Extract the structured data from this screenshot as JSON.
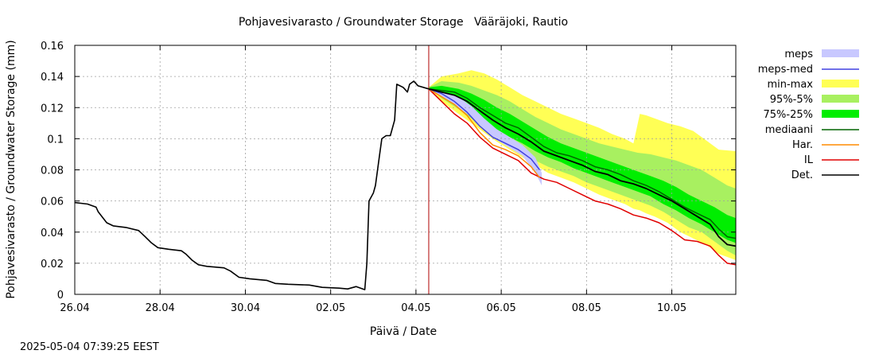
{
  "chart_data": {
    "type": "line",
    "title": "Pohjavesivarasto / Groundwater Storage   Vääräjoki, Rautio",
    "xlabel": "Päivä / Date",
    "ylabel": "Pohjavesivarasto / Groundwater Storage (mm)",
    "ylim": [
      0,
      0.16
    ],
    "y_ticks": [
      "0",
      "0.02",
      "0.04",
      "0.06",
      "0.08",
      "0.1",
      "0.12",
      "0.14",
      "0.16"
    ],
    "x_range_days": [
      0,
      15.5
    ],
    "x_ticks": [
      {
        "day": 0,
        "label": "26.04"
      },
      {
        "day": 2,
        "label": "28.04"
      },
      {
        "day": 4,
        "label": "30.04"
      },
      {
        "day": 6,
        "label": "02.05"
      },
      {
        "day": 8,
        "label": "04.05"
      },
      {
        "day": 10,
        "label": "06.05"
      },
      {
        "day": 12,
        "label": "08.05"
      },
      {
        "day": 14,
        "label": "10.05"
      }
    ],
    "grid": true,
    "legend_position": "right",
    "forecast_start_day": 8.3,
    "colors": {
      "meps": "#c8c8ff",
      "meps_med": "#4040e0",
      "minmax": "#ffff55",
      "p95_5": "#a8f060",
      "p75_25": "#00ee00",
      "median": "#006400",
      "har": "#ff8c00",
      "il": "#e00000",
      "det": "#000000",
      "forecast_line": "#b00000"
    },
    "legend": [
      {
        "key": "meps",
        "label": "meps",
        "kind": "band"
      },
      {
        "key": "meps_med",
        "label": "meps-med",
        "kind": "line"
      },
      {
        "key": "minmax",
        "label": "min-max",
        "kind": "band"
      },
      {
        "key": "p95_5",
        "label": "95%-5%",
        "kind": "band"
      },
      {
        "key": "p75_25",
        "label": "75%-25%",
        "kind": "band"
      },
      {
        "key": "median",
        "label": "mediaani",
        "kind": "line"
      },
      {
        "key": "har",
        "label": "Har.",
        "kind": "line"
      },
      {
        "key": "il",
        "label": "IL",
        "kind": "line"
      },
      {
        "key": "det",
        "label": "Det.",
        "kind": "line"
      }
    ],
    "series": {
      "observed": [
        [
          0,
          0.059
        ],
        [
          0.3,
          0.058
        ],
        [
          0.5,
          0.056
        ],
        [
          0.55,
          0.053
        ],
        [
          0.75,
          0.046
        ],
        [
          0.9,
          0.044
        ],
        [
          1.2,
          0.043
        ],
        [
          1.5,
          0.041
        ],
        [
          1.65,
          0.037
        ],
        [
          1.8,
          0.033
        ],
        [
          1.95,
          0.03
        ],
        [
          2.2,
          0.029
        ],
        [
          2.5,
          0.028
        ],
        [
          2.6,
          0.026
        ],
        [
          2.75,
          0.022
        ],
        [
          2.9,
          0.019
        ],
        [
          3.1,
          0.018
        ],
        [
          3.5,
          0.017
        ],
        [
          3.65,
          0.015
        ],
        [
          3.85,
          0.011
        ],
        [
          4.1,
          0.01
        ],
        [
          4.5,
          0.009
        ],
        [
          4.7,
          0.007
        ],
        [
          5.0,
          0.0065
        ],
        [
          5.5,
          0.006
        ],
        [
          5.8,
          0.0045
        ],
        [
          6.2,
          0.004
        ],
        [
          6.4,
          0.0035
        ],
        [
          6.6,
          0.005
        ],
        [
          6.8,
          0.003
        ],
        [
          6.85,
          0.02
        ],
        [
          6.9,
          0.06
        ],
        [
          7.0,
          0.065
        ],
        [
          7.05,
          0.07
        ],
        [
          7.15,
          0.09
        ],
        [
          7.2,
          0.1
        ],
        [
          7.3,
          0.102
        ],
        [
          7.4,
          0.102
        ],
        [
          7.5,
          0.112
        ],
        [
          7.55,
          0.135
        ],
        [
          7.7,
          0.133
        ],
        [
          7.8,
          0.13
        ],
        [
          7.85,
          0.135
        ],
        [
          7.95,
          0.137
        ],
        [
          8.05,
          0.134
        ],
        [
          8.3,
          0.132
        ]
      ],
      "det": [
        [
          8.3,
          0.132
        ],
        [
          8.6,
          0.13
        ],
        [
          8.9,
          0.128
        ],
        [
          9.2,
          0.124
        ],
        [
          9.5,
          0.118
        ],
        [
          9.8,
          0.112
        ],
        [
          10.1,
          0.107
        ],
        [
          10.4,
          0.103
        ],
        [
          10.7,
          0.098
        ],
        [
          11.0,
          0.092
        ],
        [
          11.3,
          0.089
        ],
        [
          11.6,
          0.086
        ],
        [
          11.9,
          0.083
        ],
        [
          12.2,
          0.079
        ],
        [
          12.5,
          0.077
        ],
        [
          12.8,
          0.073
        ],
        [
          13.1,
          0.071
        ],
        [
          13.4,
          0.068
        ],
        [
          13.7,
          0.064
        ],
        [
          14.0,
          0.06
        ],
        [
          14.3,
          0.055
        ],
        [
          14.6,
          0.05
        ],
        [
          14.9,
          0.045
        ],
        [
          15.1,
          0.037
        ],
        [
          15.3,
          0.032
        ],
        [
          15.5,
          0.031
        ]
      ],
      "median": [
        [
          8.3,
          0.132
        ],
        [
          8.6,
          0.131
        ],
        [
          8.9,
          0.13
        ],
        [
          9.2,
          0.126
        ],
        [
          9.5,
          0.12
        ],
        [
          9.8,
          0.115
        ],
        [
          10.1,
          0.11
        ],
        [
          10.4,
          0.107
        ],
        [
          10.7,
          0.101
        ],
        [
          11.0,
          0.095
        ],
        [
          11.3,
          0.091
        ],
        [
          11.6,
          0.089
        ],
        [
          11.9,
          0.086
        ],
        [
          12.2,
          0.082
        ],
        [
          12.5,
          0.08
        ],
        [
          12.8,
          0.077
        ],
        [
          13.1,
          0.073
        ],
        [
          13.4,
          0.07
        ],
        [
          13.7,
          0.066
        ],
        [
          14.0,
          0.061
        ],
        [
          14.3,
          0.056
        ],
        [
          14.6,
          0.052
        ],
        [
          14.9,
          0.048
        ],
        [
          15.1,
          0.042
        ],
        [
          15.3,
          0.037
        ],
        [
          15.5,
          0.036
        ]
      ],
      "meps_med": [
        [
          8.3,
          0.132
        ],
        [
          8.6,
          0.129
        ],
        [
          8.9,
          0.124
        ],
        [
          9.2,
          0.117
        ],
        [
          9.5,
          0.108
        ],
        [
          9.8,
          0.101
        ],
        [
          10.1,
          0.097
        ],
        [
          10.4,
          0.093
        ],
        [
          10.7,
          0.087
        ],
        [
          10.9,
          0.08
        ]
      ],
      "har": [
        [
          8.3,
          0.132
        ],
        [
          8.6,
          0.127
        ],
        [
          8.9,
          0.122
        ],
        [
          9.2,
          0.115
        ],
        [
          9.5,
          0.104
        ],
        [
          9.8,
          0.096
        ],
        [
          10.1,
          0.093
        ],
        [
          10.4,
          0.089
        ],
        [
          10.7,
          0.082
        ],
        [
          10.9,
          0.075
        ]
      ],
      "il": [
        [
          8.3,
          0.132
        ],
        [
          8.6,
          0.124
        ],
        [
          8.9,
          0.116
        ],
        [
          9.2,
          0.11
        ],
        [
          9.5,
          0.101
        ],
        [
          9.8,
          0.094
        ],
        [
          10.1,
          0.09
        ],
        [
          10.4,
          0.086
        ],
        [
          10.7,
          0.078
        ],
        [
          11.0,
          0.074
        ],
        [
          11.3,
          0.072
        ],
        [
          11.6,
          0.068
        ],
        [
          11.9,
          0.064
        ],
        [
          12.2,
          0.06
        ],
        [
          12.5,
          0.058
        ],
        [
          12.8,
          0.055
        ],
        [
          13.1,
          0.051
        ],
        [
          13.4,
          0.049
        ],
        [
          13.7,
          0.046
        ],
        [
          14.0,
          0.041
        ],
        [
          14.3,
          0.035
        ],
        [
          14.6,
          0.034
        ],
        [
          14.9,
          0.031
        ],
        [
          15.1,
          0.025
        ],
        [
          15.3,
          0.02
        ],
        [
          15.5,
          0.019
        ]
      ]
    },
    "bands": {
      "minmax": [
        [
          8.3,
          0.133,
          0.133
        ],
        [
          8.6,
          0.124,
          0.14
        ],
        [
          9.0,
          0.116,
          0.142
        ],
        [
          9.3,
          0.11,
          0.144
        ],
        [
          9.6,
          0.104,
          0.142
        ],
        [
          9.9,
          0.098,
          0.138
        ],
        [
          10.2,
          0.093,
          0.133
        ],
        [
          10.5,
          0.088,
          0.128
        ],
        [
          10.8,
          0.083,
          0.124
        ],
        [
          11.1,
          0.078,
          0.12
        ],
        [
          11.4,
          0.075,
          0.116
        ],
        [
          11.7,
          0.072,
          0.113
        ],
        [
          12.0,
          0.068,
          0.11
        ],
        [
          12.3,
          0.064,
          0.107
        ],
        [
          12.6,
          0.061,
          0.103
        ],
        [
          12.9,
          0.058,
          0.1
        ],
        [
          13.1,
          0.055,
          0.097
        ],
        [
          13.25,
          0.054,
          0.116
        ],
        [
          13.4,
          0.052,
          0.115
        ],
        [
          13.6,
          0.05,
          0.113
        ],
        [
          13.9,
          0.046,
          0.11
        ],
        [
          14.2,
          0.04,
          0.108
        ],
        [
          14.5,
          0.036,
          0.105
        ],
        [
          14.8,
          0.032,
          0.099
        ],
        [
          15.1,
          0.026,
          0.093
        ],
        [
          15.5,
          0.022,
          0.092
        ]
      ],
      "p95_5": [
        [
          8.3,
          0.133,
          0.133
        ],
        [
          8.6,
          0.126,
          0.137
        ],
        [
          9.0,
          0.119,
          0.136
        ],
        [
          9.3,
          0.113,
          0.134
        ],
        [
          9.6,
          0.107,
          0.131
        ],
        [
          9.9,
          0.101,
          0.128
        ],
        [
          10.2,
          0.096,
          0.124
        ],
        [
          10.5,
          0.091,
          0.119
        ],
        [
          10.8,
          0.086,
          0.114
        ],
        [
          11.1,
          0.082,
          0.11
        ],
        [
          11.4,
          0.079,
          0.106
        ],
        [
          11.7,
          0.076,
          0.103
        ],
        [
          12.0,
          0.072,
          0.1
        ],
        [
          12.3,
          0.069,
          0.097
        ],
        [
          12.6,
          0.066,
          0.095
        ],
        [
          12.9,
          0.063,
          0.093
        ],
        [
          13.2,
          0.06,
          0.091
        ],
        [
          13.5,
          0.057,
          0.09
        ],
        [
          13.8,
          0.053,
          0.088
        ],
        [
          14.1,
          0.048,
          0.086
        ],
        [
          14.4,
          0.043,
          0.083
        ],
        [
          14.7,
          0.04,
          0.08
        ],
        [
          15.0,
          0.034,
          0.075
        ],
        [
          15.3,
          0.028,
          0.07
        ],
        [
          15.5,
          0.025,
          0.068
        ]
      ],
      "p75_25": [
        [
          8.3,
          0.133,
          0.133
        ],
        [
          8.6,
          0.128,
          0.134
        ],
        [
          9.0,
          0.123,
          0.132
        ],
        [
          9.3,
          0.117,
          0.129
        ],
        [
          9.6,
          0.111,
          0.125
        ],
        [
          9.9,
          0.106,
          0.12
        ],
        [
          10.2,
          0.101,
          0.116
        ],
        [
          10.5,
          0.097,
          0.111
        ],
        [
          10.8,
          0.092,
          0.106
        ],
        [
          11.1,
          0.088,
          0.101
        ],
        [
          11.4,
          0.085,
          0.097
        ],
        [
          11.7,
          0.081,
          0.094
        ],
        [
          12.0,
          0.078,
          0.091
        ],
        [
          12.3,
          0.075,
          0.088
        ],
        [
          12.6,
          0.072,
          0.085
        ],
        [
          12.9,
          0.069,
          0.082
        ],
        [
          13.2,
          0.066,
          0.079
        ],
        [
          13.5,
          0.063,
          0.076
        ],
        [
          13.8,
          0.058,
          0.073
        ],
        [
          14.1,
          0.054,
          0.069
        ],
        [
          14.4,
          0.049,
          0.064
        ],
        [
          14.7,
          0.045,
          0.06
        ],
        [
          15.0,
          0.04,
          0.056
        ],
        [
          15.3,
          0.035,
          0.051
        ],
        [
          15.5,
          0.033,
          0.049
        ]
      ],
      "meps": [
        [
          8.3,
          0.132,
          0.132
        ],
        [
          8.6,
          0.127,
          0.13
        ],
        [
          9.0,
          0.12,
          0.127
        ],
        [
          9.3,
          0.114,
          0.121
        ],
        [
          9.6,
          0.106,
          0.113
        ],
        [
          9.9,
          0.099,
          0.106
        ],
        [
          10.2,
          0.094,
          0.101
        ],
        [
          10.5,
          0.089,
          0.096
        ],
        [
          10.8,
          0.078,
          0.088
        ],
        [
          10.95,
          0.07,
          0.078
        ]
      ]
    }
  },
  "footer": {
    "timestamp": "2025-05-04 07:39:25 EEST"
  }
}
